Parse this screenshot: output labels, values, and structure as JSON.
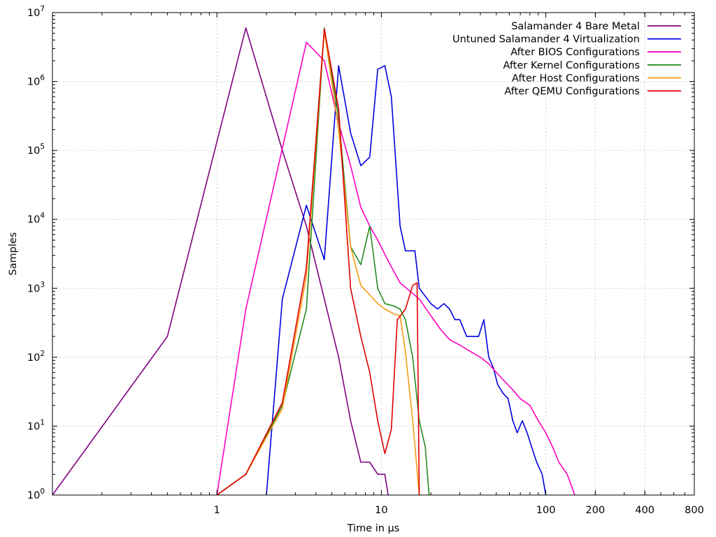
{
  "chart_data": {
    "type": "line",
    "xscale": "log",
    "yscale": "log",
    "xlabel": "Time in µs",
    "ylabel": "Samples",
    "xlim": [
      0.1,
      800
    ],
    "ylim": [
      1,
      10000000
    ],
    "grid": true,
    "legend_position": "top-right",
    "xticks": [
      {
        "value": 1,
        "label": "1"
      },
      {
        "value": 10,
        "label": "10"
      },
      {
        "value": 100,
        "label": "100"
      },
      {
        "value": 200,
        "label": "200"
      },
      {
        "value": 400,
        "label": "400"
      },
      {
        "value": 800,
        "label": "800"
      }
    ],
    "yticks": [
      {
        "value": 1,
        "base": "10",
        "exp": "0"
      },
      {
        "value": 10,
        "base": "10",
        "exp": "1"
      },
      {
        "value": 100,
        "base": "10",
        "exp": "2"
      },
      {
        "value": 1000,
        "base": "10",
        "exp": "3"
      },
      {
        "value": 10000,
        "base": "10",
        "exp": "4"
      },
      {
        "value": 100000,
        "base": "10",
        "exp": "5"
      },
      {
        "value": 1000000,
        "base": "10",
        "exp": "6"
      },
      {
        "value": 10000000,
        "base": "10",
        "exp": "7"
      }
    ],
    "series": [
      {
        "name": "Salamander 4 Bare Metal",
        "color": "#800080",
        "points": [
          [
            0.1,
            1
          ],
          [
            0.5,
            200
          ],
          [
            1.5,
            6000000
          ],
          [
            2.5,
            100000
          ],
          [
            3.5,
            8000
          ],
          [
            4.5,
            700
          ],
          [
            5.5,
            100
          ],
          [
            6.5,
            12
          ],
          [
            7.5,
            3
          ],
          [
            8.5,
            3
          ],
          [
            9.5,
            2
          ],
          [
            10.5,
            2
          ],
          [
            11,
            1
          ]
        ]
      },
      {
        "name": "Untuned Salamander 4 Virtualization",
        "color": "#0000e0",
        "points": [
          [
            2,
            1
          ],
          [
            2.5,
            700
          ],
          [
            3.5,
            16000
          ],
          [
            4.5,
            2600
          ],
          [
            5.5,
            1700000
          ],
          [
            6.5,
            180000
          ],
          [
            7.5,
            60000
          ],
          [
            8.5,
            80000
          ],
          [
            9.5,
            1500000
          ],
          [
            10.5,
            1700000
          ],
          [
            11.5,
            600000
          ],
          [
            13,
            8000
          ],
          [
            14,
            3500
          ],
          [
            15,
            3500
          ],
          [
            16,
            3500
          ],
          [
            17,
            1000
          ],
          [
            20,
            600
          ],
          [
            22,
            500
          ],
          [
            24,
            600
          ],
          [
            26,
            500
          ],
          [
            28,
            350
          ],
          [
            30,
            350
          ],
          [
            33,
            200
          ],
          [
            36,
            200
          ],
          [
            39,
            200
          ],
          [
            42,
            350
          ],
          [
            45,
            100
          ],
          [
            48,
            70
          ],
          [
            51,
            40
          ],
          [
            55,
            30
          ],
          [
            59,
            25
          ],
          [
            63,
            12
          ],
          [
            67,
            8
          ],
          [
            72,
            12
          ],
          [
            77,
            8
          ],
          [
            82,
            5
          ],
          [
            88,
            3
          ],
          [
            95,
            2
          ],
          [
            100,
            1
          ]
        ]
      },
      {
        "name": "After BIOS Configurations",
        "color": "#ff00c0",
        "points": [
          [
            1,
            1
          ],
          [
            1.5,
            500
          ],
          [
            3.5,
            3700000
          ],
          [
            4.5,
            2000000
          ],
          [
            5.5,
            250000
          ],
          [
            6.5,
            60000
          ],
          [
            7.5,
            15000
          ],
          [
            8.5,
            8000
          ],
          [
            9.5,
            5000
          ],
          [
            11,
            2500
          ],
          [
            13,
            1200
          ],
          [
            15,
            900
          ],
          [
            17,
            700
          ],
          [
            20,
            400
          ],
          [
            23,
            250
          ],
          [
            26,
            180
          ],
          [
            30,
            150
          ],
          [
            35,
            120
          ],
          [
            40,
            100
          ],
          [
            45,
            80
          ],
          [
            50,
            60
          ],
          [
            56,
            45
          ],
          [
            62,
            35
          ],
          [
            70,
            25
          ],
          [
            80,
            20
          ],
          [
            90,
            12
          ],
          [
            100,
            8
          ],
          [
            110,
            5
          ],
          [
            120,
            3
          ],
          [
            135,
            2
          ],
          [
            150,
            1
          ]
        ]
      },
      {
        "name": "After Kernel Configurations",
        "color": "#228b22",
        "points": [
          [
            1,
            1
          ],
          [
            1.5,
            2
          ],
          [
            2.5,
            20
          ],
          [
            3.5,
            500
          ],
          [
            4.5,
            6000000
          ],
          [
            5.5,
            300000
          ],
          [
            6.5,
            4000
          ],
          [
            7.5,
            2200
          ],
          [
            8.5,
            8000
          ],
          [
            9.5,
            1000
          ],
          [
            10.5,
            600
          ],
          [
            12,
            550
          ],
          [
            13,
            500
          ],
          [
            14,
            350
          ],
          [
            15.5,
            100
          ],
          [
            17,
            12
          ],
          [
            18.5,
            5
          ],
          [
            19.5,
            1
          ]
        ]
      },
      {
        "name": "After Host Configurations",
        "color": "#f39c12",
        "points": [
          [
            1,
            1
          ],
          [
            1.5,
            2
          ],
          [
            2.5,
            18
          ],
          [
            3.5,
            1500
          ],
          [
            4.5,
            5500000
          ],
          [
            5.5,
            200000
          ],
          [
            6.5,
            4000
          ],
          [
            7.5,
            1100
          ],
          [
            8.5,
            800
          ],
          [
            9.5,
            600
          ],
          [
            10.5,
            500
          ],
          [
            12,
            420
          ],
          [
            13,
            400
          ],
          [
            14,
            120
          ],
          [
            15.5,
            12
          ],
          [
            17,
            1
          ]
        ]
      },
      {
        "name": "After QEMU Configurations",
        "color": "#e00000",
        "points": [
          [
            1,
            1
          ],
          [
            1.5,
            2
          ],
          [
            2.5,
            22
          ],
          [
            3.5,
            2000
          ],
          [
            4.5,
            5800000
          ],
          [
            5.5,
            400000
          ],
          [
            6.5,
            1000
          ],
          [
            7.5,
            200
          ],
          [
            8.5,
            60
          ],
          [
            9.5,
            12
          ],
          [
            10.5,
            4
          ],
          [
            11.5,
            9
          ],
          [
            12.5,
            350
          ],
          [
            14,
            500
          ],
          [
            15.5,
            1100
          ],
          [
            16.5,
            1200
          ],
          [
            17,
            1
          ]
        ]
      }
    ]
  }
}
